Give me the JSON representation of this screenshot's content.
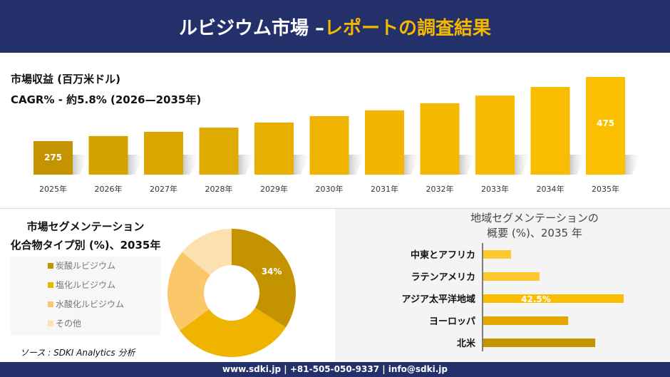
{
  "header": {
    "title_main": "ルビジウム市場 –",
    "title_accent": "レポートの調査結果"
  },
  "chart_data": [
    {
      "type": "bar",
      "title": "市場収益 (百万米ドル)",
      "subtitle": "CAGR% - 約5.8% (2026—2035年)",
      "categories": [
        "2025年",
        "2026年",
        "2027年",
        "2028年",
        "2029年",
        "2030年",
        "2031年",
        "2032年",
        "2033年",
        "2034年",
        "2035年"
      ],
      "values": [
        275,
        291,
        304,
        317,
        333,
        353,
        371,
        393,
        417,
        444,
        475
      ],
      "data_labels": {
        "0": "275",
        "10": "475"
      },
      "colors": [
        "#c49400",
        "#d4a300",
        "#daa700",
        "#e0ab00",
        "#e8b000",
        "#f0b400",
        "#f2b600",
        "#f4b800",
        "#f6ba00",
        "#f8bc00",
        "#fac000"
      ],
      "grid": false
    },
    {
      "type": "pie",
      "title": "市場セグメンテーション",
      "subtitle": "化合物タイプ別 (%)、2035年",
      "labels": [
        "炭酸ルビジウム",
        "塩化ルビジウム",
        "水酸化ルビジウム",
        "その他"
      ],
      "values": [
        34,
        31,
        21,
        14
      ],
      "data_labels": [
        "34%",
        "",
        "",
        ""
      ],
      "colors": [
        "#c49400",
        "#eeb400",
        "#fbc869",
        "#fde0b0"
      ],
      "legend": "left"
    },
    {
      "type": "bar",
      "orientation": "horizontal",
      "title": "地域セグメンテーションの",
      "subtitle": "概要 (%)、2035 年",
      "categories": [
        "中東とアフリカ",
        "ラテンアメリカ",
        "アジア太平洋地域",
        "ヨーロッパ",
        "北米"
      ],
      "values": [
        8.4,
        17,
        42.5,
        25.7,
        33.9
      ],
      "data_labels": [
        "",
        "",
        "42.5%",
        "",
        ""
      ],
      "colors": [
        "#fcc830",
        "#fcc830",
        "#fcbc00",
        "#e2a800",
        "#c49400"
      ]
    }
  ],
  "source": "ソース : SDKI Analytics 分析",
  "footer": "www.sdki.jp | +81-505-050-9337 | info@sdki.jp"
}
